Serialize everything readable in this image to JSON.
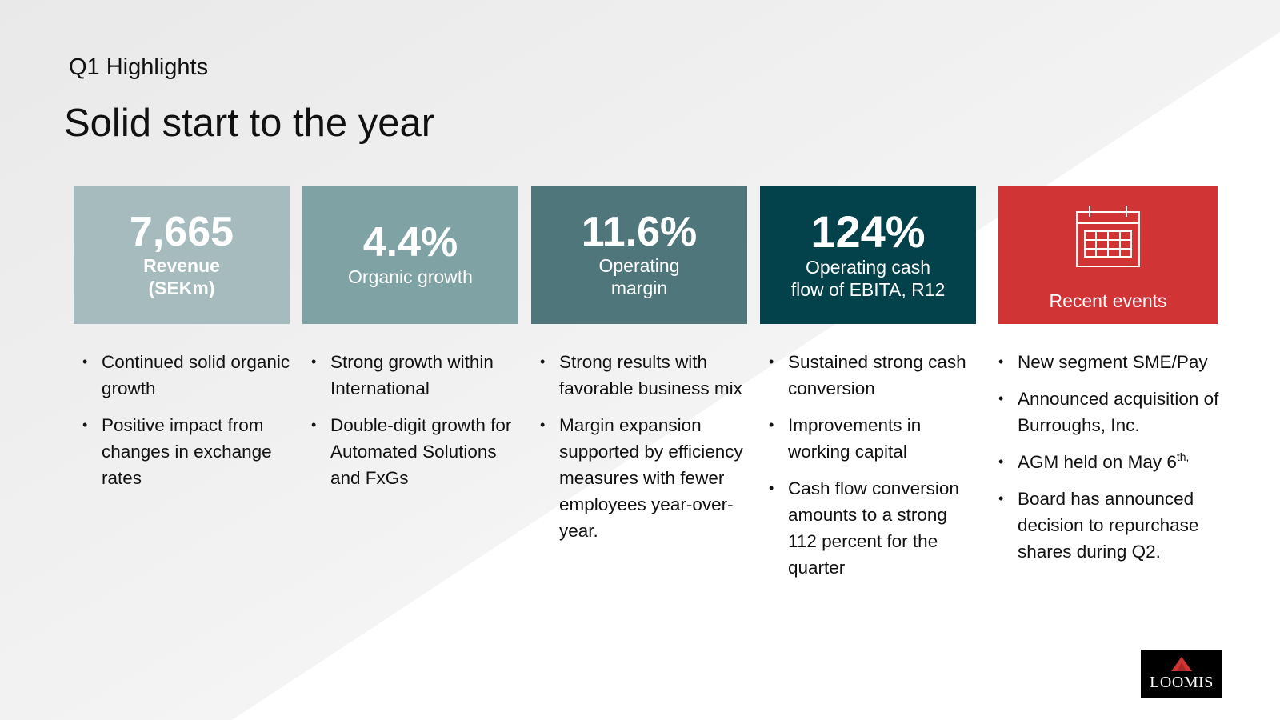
{
  "header": {
    "subtitle": "Q1 Highlights",
    "title": "Solid start to the year"
  },
  "cards": [
    {
      "value": "7,665",
      "label_line1": "Revenue",
      "label_line2": "(SEKm)",
      "color": "#a5bbbe"
    },
    {
      "value": "4.4%",
      "label_line1": "Organic growth",
      "color": "#7fa2a5"
    },
    {
      "value": "11.6%",
      "label_line1": "Operating",
      "label_line2": "margin",
      "color": "#4e767b"
    },
    {
      "value": "124%",
      "label_line1": "Operating cash",
      "label_line2": "flow of EBITA, R12",
      "color": "#04424b"
    },
    {
      "icon": "calendar-icon",
      "label_line1": "Recent events",
      "color": "#d13434"
    }
  ],
  "bullets": {
    "col1": [
      "Continued solid organic growth",
      "Positive impact from changes in exchange rates"
    ],
    "col2": [
      "Strong growth within International",
      "Double-digit growth for Automated Solutions and FxGs"
    ],
    "col3": [
      "Strong results with favorable business mix",
      "Margin expansion supported by efficiency measures with fewer employees year-over-year."
    ],
    "col4": [
      "Sustained strong cash conversion",
      "Improvements in working capital",
      "Cash flow conversion amounts to a strong 112 percent for the quarter"
    ],
    "col5": {
      "item1": "New segment SME/Pay",
      "item2": "Announced acquisition of Burroughs, Inc.",
      "item3_main": "AGM held on May 6",
      "item3_sup": "th,",
      "item4": "Board has announced decision to repurchase shares during Q2."
    }
  },
  "logo": {
    "text": "LOOMIS",
    "accent": "#d13434"
  }
}
